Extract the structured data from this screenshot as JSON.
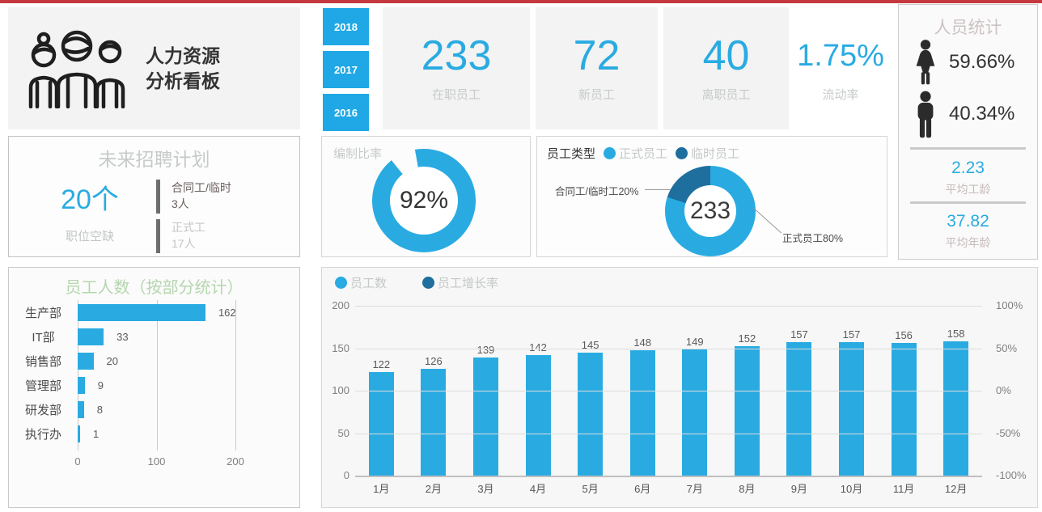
{
  "colors": {
    "primary": "#29abe2",
    "dark_blue": "#1e6e9e",
    "top_bar": "#c5383f",
    "title_green": "#b5d6ae"
  },
  "header": {
    "title_line1": "人力资源",
    "title_line2": "分析看板"
  },
  "years": [
    "2018",
    "2017",
    "2016"
  ],
  "kpis": [
    {
      "value": "233",
      "label": "在职员工"
    },
    {
      "value": "72",
      "label": "新员工"
    },
    {
      "value": "40",
      "label": "离职员工"
    },
    {
      "value": "1.75%",
      "label": "流动率"
    }
  ],
  "stats_panel": {
    "title": "人员统计",
    "female_pct": "59.66%",
    "male_pct": "40.34%",
    "avg_tenure": {
      "value": "2.23",
      "label": "平均工龄"
    },
    "avg_age": {
      "value": "37.82",
      "label": "平均年龄"
    }
  },
  "recruitment": {
    "title": "未来招聘计划",
    "vacancies": "20个",
    "vacancies_label": "职位空缺",
    "items": [
      {
        "line1": "合同工/临时",
        "line2": "3人"
      },
      {
        "line1": "正式工",
        "line2": "17人"
      }
    ]
  },
  "chart_data": [
    {
      "id": "staffing_ratio",
      "type": "donut",
      "title": "编制比率",
      "value": 92,
      "label": "92%",
      "color": "#29abe2"
    },
    {
      "id": "employee_type",
      "type": "donut",
      "title": "员工类型",
      "center_label": "233",
      "legend": [
        "正式员工",
        "临时员工"
      ],
      "slices": [
        {
          "name": "正式员工",
          "pct": 80,
          "color": "#29abe2"
        },
        {
          "name": "合同工/临时工",
          "pct": 20,
          "color": "#1e6e9e"
        }
      ],
      "callout_left": "合同工/临时工20%",
      "callout_right": "正式员工80%"
    },
    {
      "id": "dept_headcount",
      "type": "bar",
      "orientation": "horizontal",
      "title": "员工人数（按部分统计）",
      "categories": [
        "生产部",
        "IT部",
        "销售部",
        "管理部",
        "研发部",
        "执行办"
      ],
      "values": [
        162,
        33,
        20,
        9,
        8,
        1
      ],
      "xlim": [
        0,
        200
      ],
      "xticks": [
        0,
        100,
        200
      ],
      "bar_color": "#29abe2"
    },
    {
      "id": "monthly_headcount",
      "type": "bar",
      "series": [
        {
          "name": "员工数",
          "color": "#29abe2",
          "values": [
            122,
            126,
            139,
            142,
            145,
            148,
            149,
            152,
            157,
            157,
            156,
            158
          ]
        },
        {
          "name": "员工增长率",
          "color": "#1e6e9e",
          "values": []
        }
      ],
      "categories": [
        "1月",
        "2月",
        "3月",
        "4月",
        "5月",
        "6月",
        "7月",
        "8月",
        "9月",
        "10月",
        "11月",
        "12月"
      ],
      "ylim_left": [
        0,
        200
      ],
      "yticks_left": [
        200,
        150,
        100,
        50,
        0
      ],
      "yticks_right": [
        "100%",
        "50%",
        "0%",
        "-50%",
        "-100%"
      ],
      "grid": true,
      "legend_position": "top-left"
    }
  ]
}
